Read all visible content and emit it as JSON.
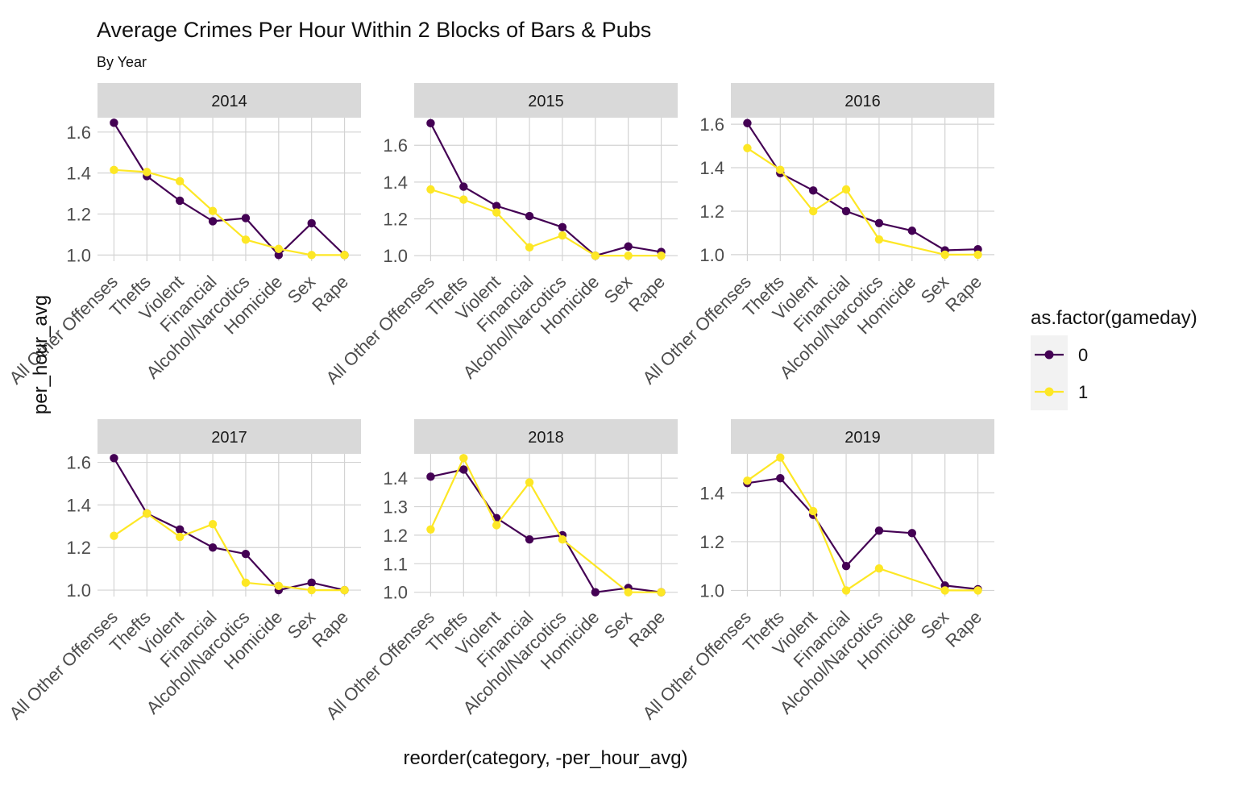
{
  "chart_data": {
    "type": "line",
    "title": "Average Crimes Per Hour Within 2 Blocks of Bars & Pubs",
    "subtitle": "By Year",
    "xlabel": "reorder(category, -per_hour_avg)",
    "ylabel": "per_hour_avg",
    "grid": true,
    "legend": {
      "title": "as.factor(gameday)",
      "placement": "right",
      "entries": [
        "0",
        "1"
      ]
    },
    "colors": {
      "0": "#440154",
      "1": "#FDE725",
      "strip": "#D9D9D9",
      "grid": "#D3D3D3"
    },
    "categories": [
      "All Other Offenses",
      "Thefts",
      "Violent",
      "Financial",
      "Alcohol/Narcotics",
      "Homicide",
      "Sex",
      "Rape"
    ],
    "panels": [
      {
        "label": "2014",
        "ylim": [
          0.97,
          1.67
        ],
        "yticks": [
          1.0,
          1.2,
          1.4,
          1.6
        ],
        "series": [
          {
            "name": "0",
            "values": [
              1.645,
              1.385,
              1.265,
              1.165,
              1.18,
              1.0,
              1.155,
              1.0
            ]
          },
          {
            "name": "1",
            "values": [
              1.415,
              1.405,
              1.36,
              1.215,
              1.075,
              1.03,
              1.0,
              1.0
            ]
          }
        ]
      },
      {
        "label": "2015",
        "ylim": [
          0.97,
          1.75
        ],
        "yticks": [
          1.0,
          1.2,
          1.4,
          1.6
        ],
        "series": [
          {
            "name": "0",
            "values": [
              1.72,
              1.375,
              1.27,
              1.215,
              1.155,
              1.0,
              1.05,
              1.02
            ]
          },
          {
            "name": "1",
            "values": [
              1.36,
              1.305,
              1.235,
              1.045,
              1.11,
              1.0,
              1.0,
              1.0
            ]
          }
        ]
      },
      {
        "label": "2016",
        "ylim": [
          0.97,
          1.63
        ],
        "yticks": [
          1.0,
          1.2,
          1.4,
          1.6
        ],
        "series": [
          {
            "name": "0",
            "values": [
              1.605,
              1.375,
              1.295,
              1.2,
              1.145,
              1.11,
              1.02,
              1.025
            ]
          },
          {
            "name": "1",
            "values": [
              1.49,
              1.39,
              1.2,
              1.3,
              1.07,
              null,
              1.0,
              1.0
            ]
          }
        ]
      },
      {
        "label": "2017",
        "ylim": [
          0.97,
          1.64
        ],
        "yticks": [
          1.0,
          1.2,
          1.4,
          1.6
        ],
        "series": [
          {
            "name": "0",
            "values": [
              1.62,
              1.36,
              1.285,
              1.2,
              1.17,
              1.0,
              1.035,
              1.0
            ]
          },
          {
            "name": "1",
            "values": [
              1.255,
              1.36,
              1.25,
              1.31,
              1.035,
              1.02,
              1.0,
              1.0
            ]
          }
        ]
      },
      {
        "label": "2018",
        "ylim": [
          0.985,
          1.485
        ],
        "yticks": [
          1.0,
          1.1,
          1.2,
          1.3,
          1.4
        ],
        "series": [
          {
            "name": "0",
            "values": [
              1.405,
              1.43,
              1.26,
              1.185,
              1.2,
              1.0,
              1.015,
              1.0
            ]
          },
          {
            "name": "1",
            "values": [
              1.22,
              1.47,
              1.235,
              1.385,
              1.185,
              null,
              1.0,
              1.0
            ]
          }
        ]
      },
      {
        "label": "2019",
        "ylim": [
          0.975,
          1.56
        ],
        "yticks": [
          1.0,
          1.2,
          1.4
        ],
        "series": [
          {
            "name": "0",
            "values": [
              1.44,
              1.46,
              1.31,
              1.1,
              1.245,
              1.235,
              1.02,
              1.005
            ]
          },
          {
            "name": "1",
            "values": [
              1.45,
              1.545,
              1.325,
              1.0,
              1.09,
              null,
              1.0,
              1.0
            ]
          }
        ]
      }
    ]
  }
}
